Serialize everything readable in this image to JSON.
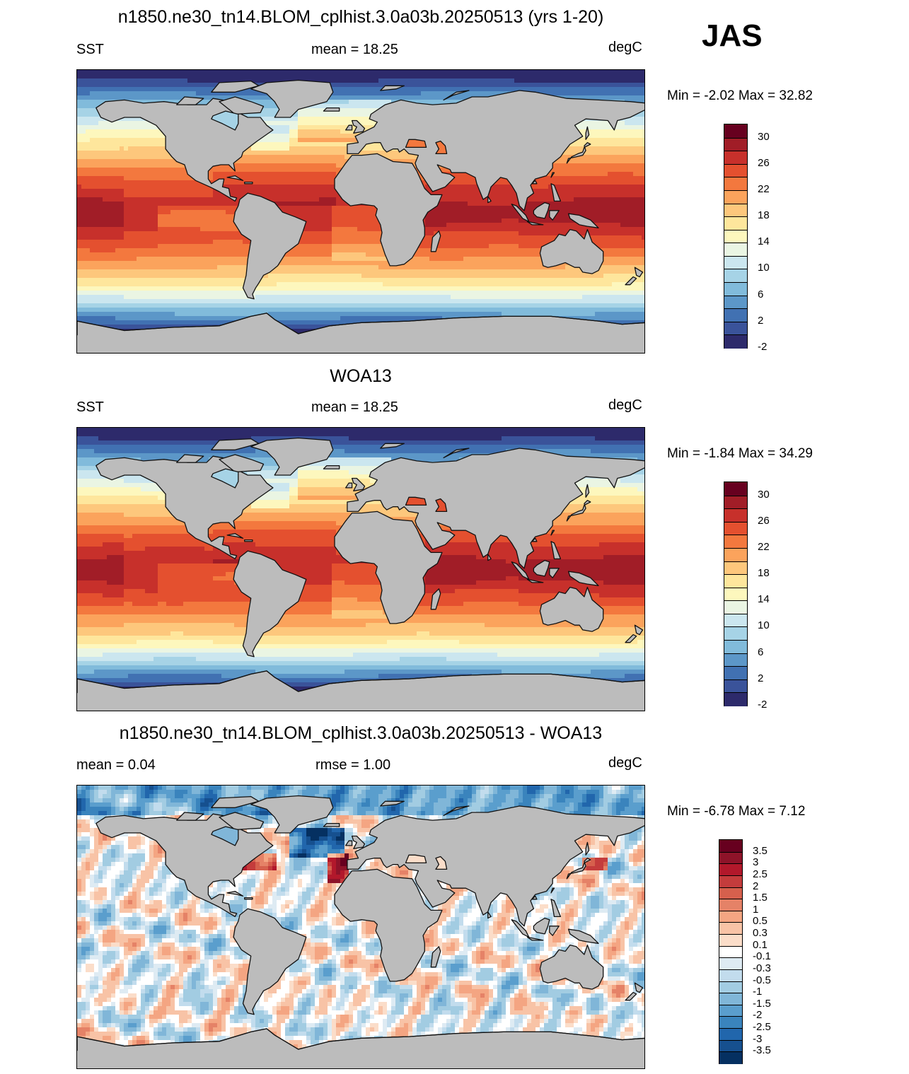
{
  "season": "JAS",
  "colors": {
    "land": "#bcbcbc",
    "coast": "#111111"
  },
  "panels": [
    {
      "id": "model",
      "title": "n1850.ne30_tn14.BLOM_cplhist.3.0a03b.20250513 (yrs 1-20)",
      "left_label": "SST",
      "center_label": "mean =  18.25",
      "units": "degC",
      "minmax": "Min =  -2.02 Max =  32.82",
      "field": "sst",
      "colorbar": {
        "labels": [
          "30",
          "26",
          "22",
          "18",
          "14",
          "10",
          "6",
          "2",
          "-2"
        ],
        "colors": [
          "#67001f",
          "#a11d27",
          "#c7302b",
          "#e4502f",
          "#f3783e",
          "#fba35c",
          "#fdc77c",
          "#fee69c",
          "#fdf7bd",
          "#eaf5e3",
          "#cbe6ef",
          "#a6d3e6",
          "#81bbdb",
          "#5c97c8",
          "#4171b2",
          "#3a539a",
          "#2d2a6b"
        ]
      },
      "stats": {
        "min": -2.02,
        "max": 32.82,
        "mean": 18.25
      }
    },
    {
      "id": "obs",
      "title": "WOA13",
      "left_label": "SST",
      "center_label": "mean =  18.25",
      "units": "degC",
      "minmax": "Min =  -1.84 Max =  34.29",
      "field": "sst",
      "colorbar": {
        "labels": [
          "30",
          "26",
          "22",
          "18",
          "14",
          "10",
          "6",
          "2",
          "-2"
        ],
        "colors": [
          "#67001f",
          "#a11d27",
          "#c7302b",
          "#e4502f",
          "#f3783e",
          "#fba35c",
          "#fdc77c",
          "#fee69c",
          "#fdf7bd",
          "#eaf5e3",
          "#cbe6ef",
          "#a6d3e6",
          "#81bbdb",
          "#5c97c8",
          "#4171b2",
          "#3a539a",
          "#2d2a6b"
        ]
      },
      "stats": {
        "min": -1.84,
        "max": 34.29,
        "mean": 18.25
      }
    },
    {
      "id": "diff",
      "title": "n1850.ne30_tn14.BLOM_cplhist.3.0a03b.20250513 - WOA13",
      "left_label": "mean =   0.04",
      "center_label": "rmse =   1.00",
      "units": "degC",
      "minmax": "Min =  -6.78 Max =   7.12",
      "field": "diff",
      "colorbar": {
        "labels": [
          "3.5",
          "3",
          "2.5",
          "2",
          "1.5",
          "1",
          "0.5",
          "0.3",
          "0.1",
          "-0.1",
          "-0.3",
          "-0.5",
          "-1",
          "-1.5",
          "-2",
          "-2.5",
          "-3",
          "-3.5"
        ],
        "colors": [
          "#67001f",
          "#8e1329",
          "#b2182b",
          "#c43c3c",
          "#d6604d",
          "#e58267",
          "#f4a582",
          "#f8c3a6",
          "#fbddc9",
          "#ffffff",
          "#deebf3",
          "#c2dced",
          "#a2cce2",
          "#80b6d8",
          "#5a9ecd",
          "#3a84bd",
          "#2166ac",
          "#16508f",
          "#053061"
        ]
      },
      "stats": {
        "min": -6.78,
        "max": 7.12,
        "mean": 0.04,
        "rmse": 1.0
      }
    }
  ]
}
